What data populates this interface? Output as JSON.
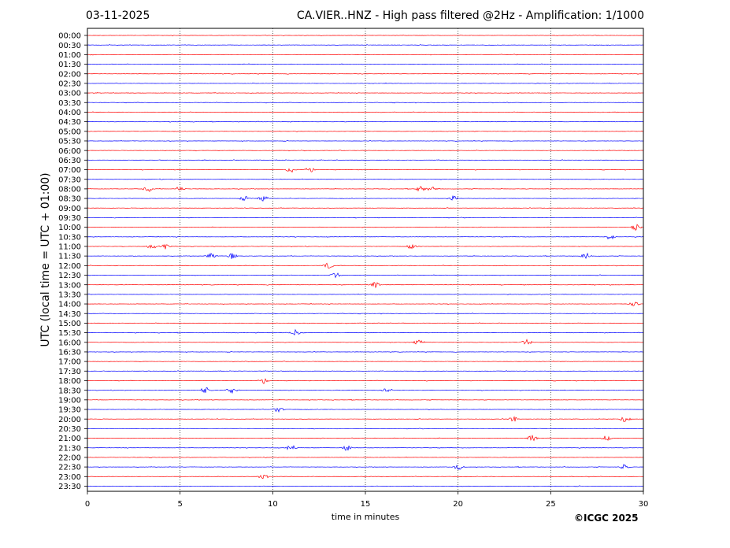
{
  "header": {
    "date": "03-11-2025",
    "title": "CA.VIER..HNZ - High pass filtered @2Hz - Amplification: 1/1000"
  },
  "footer": {
    "copyright": "©ICGC 2025"
  },
  "chart_data": {
    "type": "line",
    "subtype": "helicorder",
    "title": "CA.VIER..HNZ - High pass filtered @2Hz - Amplification: 1/1000",
    "xlabel": "time in minutes",
    "ylabel": "UTC (local time = UTC + 01:00)",
    "xlim": [
      0,
      30
    ],
    "x_ticks": [
      0,
      5,
      10,
      15,
      20,
      25,
      30
    ],
    "vertical_gridlines": [
      5,
      10,
      15,
      20,
      25
    ],
    "grid": "vertical dotted",
    "row_labels": [
      "00:00",
      "00:30",
      "01:00",
      "01:30",
      "02:00",
      "02:30",
      "03:00",
      "03:30",
      "04:00",
      "04:30",
      "05:00",
      "05:30",
      "06:00",
      "06:30",
      "07:00",
      "07:30",
      "08:00",
      "08:30",
      "09:00",
      "09:30",
      "10:00",
      "10:30",
      "11:00",
      "11:30",
      "12:00",
      "12:30",
      "13:00",
      "13:30",
      "14:00",
      "14:30",
      "15:00",
      "15:30",
      "16:00",
      "16:30",
      "17:00",
      "17:30",
      "18:00",
      "18:30",
      "19:00",
      "19:30",
      "20:00",
      "20:30",
      "21:00",
      "21:30",
      "22:00",
      "22:30",
      "23:00",
      "23:30"
    ],
    "row_colors": [
      "#ff0000",
      "#0000ff"
    ],
    "events": [
      {
        "row": "07:00",
        "minutes": [
          11.0,
          12.0
        ]
      },
      {
        "row": "08:00",
        "minutes": [
          3.3,
          5.0,
          18.0,
          18.6
        ]
      },
      {
        "row": "08:30",
        "minutes": [
          8.5,
          9.5,
          19.7
        ]
      },
      {
        "row": "10:00",
        "minutes": [
          29.6
        ]
      },
      {
        "row": "10:30",
        "minutes": [
          28.2
        ]
      },
      {
        "row": "11:00",
        "minutes": [
          3.5,
          4.2,
          17.5
        ]
      },
      {
        "row": "11:30",
        "minutes": [
          6.7,
          7.8,
          26.9
        ]
      },
      {
        "row": "12:00",
        "minutes": [
          13.0
        ]
      },
      {
        "row": "12:30",
        "minutes": [
          13.4
        ]
      },
      {
        "row": "13:00",
        "minutes": [
          15.5
        ]
      },
      {
        "row": "14:00",
        "minutes": [
          29.5
        ]
      },
      {
        "row": "15:30",
        "minutes": [
          11.2
        ]
      },
      {
        "row": "16:00",
        "minutes": [
          17.9,
          23.7
        ]
      },
      {
        "row": "18:00",
        "minutes": [
          9.5
        ]
      },
      {
        "row": "18:30",
        "minutes": [
          6.4,
          7.8,
          16.2
        ]
      },
      {
        "row": "19:30",
        "minutes": [
          10.3
        ]
      },
      {
        "row": "20:00",
        "minutes": [
          23.0,
          29.0
        ]
      },
      {
        "row": "21:00",
        "minutes": [
          24.0,
          28.0
        ]
      },
      {
        "row": "21:30",
        "minutes": [
          11.0,
          14.0
        ]
      },
      {
        "row": "22:30",
        "minutes": [
          20.0,
          29.0
        ]
      },
      {
        "row": "23:00",
        "minutes": [
          9.5
        ]
      }
    ]
  }
}
